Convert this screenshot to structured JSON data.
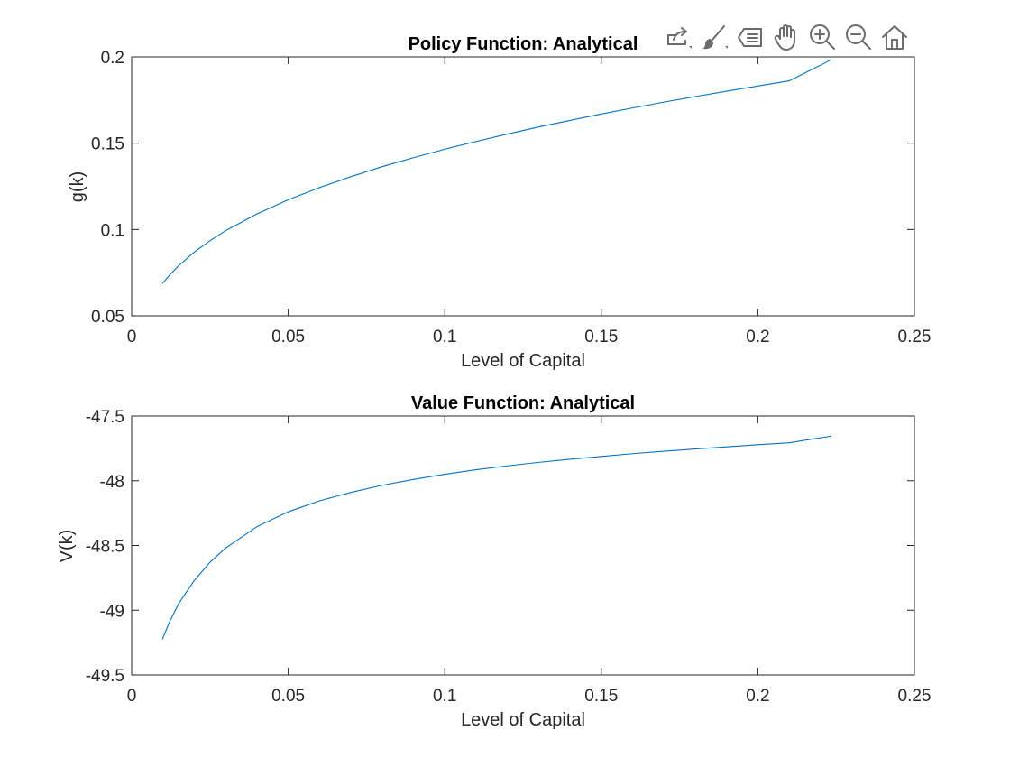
{
  "toolbar": {
    "icons": [
      "export-icon",
      "brush-icon",
      "data-tips-icon",
      "pan-icon",
      "zoom-in-icon",
      "zoom-out-icon",
      "home-icon"
    ]
  },
  "colors": {
    "series": "#0072BD",
    "axis": "#262626"
  },
  "chart_data": [
    {
      "type": "line",
      "title": "Policy Function: Analytical",
      "xlabel": "Level of Capital",
      "ylabel": "g(k)",
      "xlim": [
        0,
        0.25
      ],
      "ylim": [
        0.05,
        0.2
      ],
      "xticks": [
        0,
        0.05,
        0.1,
        0.15,
        0.2,
        0.25
      ],
      "xtick_labels": [
        "0",
        "0.05",
        "0.1",
        "0.15",
        "0.2",
        "0.25"
      ],
      "yticks": [
        0.05,
        0.1,
        0.15,
        0.2
      ],
      "ytick_labels": [
        "0.05",
        "0.1",
        "0.15",
        "0.2"
      ],
      "grid": false,
      "series": [
        {
          "x": [
            0.0098,
            0.012,
            0.015,
            0.02,
            0.025,
            0.03,
            0.04,
            0.05,
            0.06,
            0.07,
            0.08,
            0.09,
            0.1,
            0.11,
            0.12,
            0.13,
            0.14,
            0.15,
            0.16,
            0.17,
            0.18,
            0.19,
            0.2,
            0.21,
            0.2235
          ],
          "y": [
            0.0687,
            0.0733,
            0.079,
            0.0869,
            0.0935,
            0.0993,
            0.109,
            0.1172,
            0.1243,
            0.1306,
            0.1364,
            0.1416,
            0.1465,
            0.151,
            0.1553,
            0.1594,
            0.1632,
            0.1669,
            0.1704,
            0.1738,
            0.177,
            0.1801,
            0.1831,
            0.1861,
            0.1984
          ]
        }
      ]
    },
    {
      "type": "line",
      "title": "Value Function: Analytical",
      "xlabel": "Level of Capital",
      "ylabel": "V(k)",
      "xlim": [
        0,
        0.25
      ],
      "ylim": [
        -49.5,
        -47.5
      ],
      "xticks": [
        0,
        0.05,
        0.1,
        0.15,
        0.2,
        0.25
      ],
      "xtick_labels": [
        "0",
        "0.05",
        "0.1",
        "0.15",
        "0.2",
        "0.25"
      ],
      "yticks": [
        -49.5,
        -49,
        -48.5,
        -48,
        -47.5
      ],
      "ytick_labels": [
        "-49.5",
        "-49",
        "-48.5",
        "-48",
        "-47.5"
      ],
      "grid": false,
      "series": [
        {
          "x": [
            0.0098,
            0.012,
            0.015,
            0.02,
            0.025,
            0.03,
            0.04,
            0.05,
            0.06,
            0.07,
            0.08,
            0.09,
            0.1,
            0.11,
            0.12,
            0.13,
            0.14,
            0.15,
            0.16,
            0.17,
            0.18,
            0.19,
            0.2,
            0.21,
            0.2235
          ],
          "y": [
            -49.225,
            -49.095,
            -48.95,
            -48.77,
            -48.63,
            -48.52,
            -48.355,
            -48.24,
            -48.155,
            -48.09,
            -48.035,
            -47.99,
            -47.95,
            -47.915,
            -47.885,
            -47.858,
            -47.834,
            -47.812,
            -47.791,
            -47.772,
            -47.755,
            -47.738,
            -47.722,
            -47.707,
            -47.655
          ]
        }
      ]
    }
  ]
}
